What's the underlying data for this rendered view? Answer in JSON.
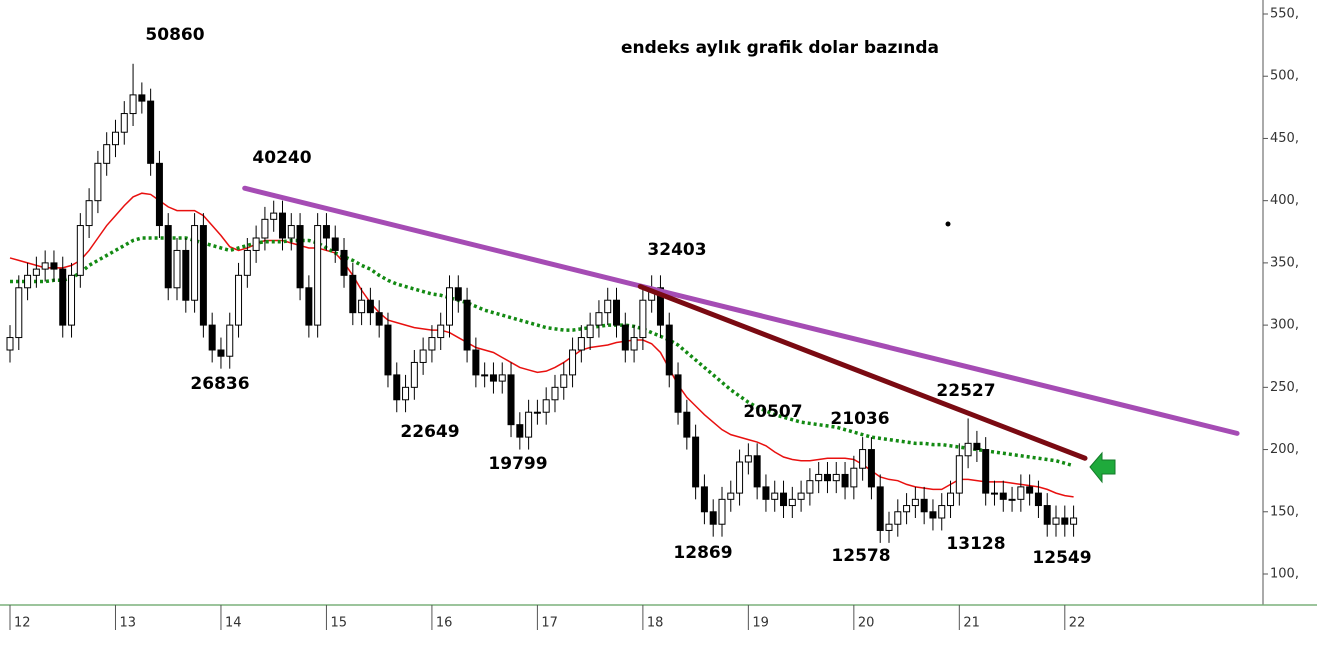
{
  "chart_data": {
    "type": "candlestick",
    "title": "endeks aylık grafik dolar bazında",
    "categories": [
      "12",
      null,
      null,
      null,
      null,
      null,
      null,
      null,
      null,
      null,
      null,
      null,
      "13",
      null,
      null,
      null,
      null,
      null,
      null,
      null,
      null,
      null,
      null,
      null,
      "14",
      null,
      null,
      null,
      null,
      null,
      null,
      null,
      null,
      null,
      null,
      null,
      "15",
      null,
      null,
      null,
      null,
      null,
      null,
      null,
      null,
      null,
      null,
      null,
      "16",
      null,
      null,
      null,
      null,
      null,
      null,
      null,
      null,
      null,
      null,
      null,
      "17",
      null,
      null,
      null,
      null,
      null,
      null,
      null,
      null,
      null,
      null,
      null,
      "18",
      null,
      null,
      null,
      null,
      null,
      null,
      null,
      null,
      null,
      null,
      null,
      "19",
      null,
      null,
      null,
      null,
      null,
      null,
      null,
      null,
      null,
      null,
      null,
      "20",
      null,
      null,
      null,
      null,
      null,
      null,
      null,
      null,
      null,
      null,
      null,
      "21",
      null,
      null,
      null,
      null,
      null,
      null,
      null,
      null,
      null,
      null,
      null,
      "22",
      null
    ],
    "open": [
      280,
      290,
      330,
      340,
      345,
      350,
      345,
      300,
      340,
      380,
      400,
      430,
      445,
      455,
      470,
      485,
      480,
      430,
      380,
      330,
      360,
      320,
      380,
      300,
      280,
      275,
      300,
      340,
      360,
      370,
      385,
      390,
      370,
      380,
      330,
      300,
      380,
      370,
      360,
      340,
      310,
      320,
      310,
      300,
      260,
      240,
      250,
      270,
      280,
      290,
      300,
      330,
      320,
      280,
      260,
      260,
      255,
      260,
      220,
      210,
      230,
      230,
      240,
      250,
      260,
      280,
      290,
      300,
      310,
      320,
      300,
      280,
      290,
      320,
      330,
      300,
      260,
      230,
      210,
      170,
      150,
      140,
      160,
      165,
      190,
      195,
      170,
      160,
      165,
      155,
      160,
      165,
      175,
      180,
      175,
      180,
      170,
      185,
      200,
      170,
      135,
      140,
      150,
      155,
      160,
      150,
      145,
      155,
      165,
      195,
      205,
      200,
      165,
      165,
      160,
      160,
      170,
      165,
      155,
      140,
      145,
      140
    ],
    "high": [
      300,
      340,
      350,
      355,
      360,
      360,
      355,
      350,
      390,
      410,
      440,
      455,
      465,
      480,
      510,
      495,
      490,
      440,
      390,
      370,
      370,
      390,
      390,
      310,
      290,
      310,
      350,
      370,
      380,
      395,
      400,
      400,
      390,
      390,
      340,
      390,
      390,
      380,
      370,
      350,
      330,
      330,
      320,
      310,
      270,
      260,
      280,
      290,
      300,
      310,
      340,
      340,
      330,
      290,
      270,
      270,
      270,
      270,
      230,
      240,
      240,
      250,
      260,
      270,
      290,
      300,
      310,
      320,
      330,
      330,
      310,
      300,
      330,
      340,
      340,
      310,
      270,
      240,
      220,
      180,
      160,
      170,
      175,
      200,
      205,
      205,
      180,
      175,
      175,
      170,
      175,
      185,
      190,
      190,
      190,
      190,
      195,
      210,
      210,
      180,
      150,
      160,
      165,
      170,
      170,
      160,
      165,
      175,
      205,
      225,
      215,
      210,
      175,
      175,
      170,
      180,
      180,
      175,
      165,
      155,
      155,
      155
    ],
    "low": [
      270,
      280,
      320,
      330,
      335,
      335,
      290,
      290,
      330,
      370,
      390,
      420,
      435,
      445,
      460,
      470,
      420,
      370,
      320,
      320,
      310,
      310,
      290,
      270,
      265,
      265,
      290,
      330,
      350,
      360,
      375,
      360,
      360,
      320,
      290,
      290,
      360,
      350,
      330,
      300,
      300,
      300,
      290,
      250,
      230,
      230,
      240,
      260,
      270,
      280,
      290,
      310,
      270,
      250,
      250,
      245,
      245,
      210,
      200,
      200,
      220,
      220,
      230,
      240,
      250,
      270,
      280,
      290,
      300,
      290,
      270,
      270,
      280,
      310,
      290,
      250,
      220,
      200,
      160,
      140,
      130,
      130,
      150,
      155,
      180,
      160,
      150,
      150,
      145,
      145,
      150,
      155,
      165,
      165,
      165,
      160,
      160,
      175,
      160,
      125,
      125,
      130,
      140,
      145,
      140,
      135,
      135,
      145,
      155,
      185,
      190,
      155,
      155,
      150,
      150,
      150,
      155,
      145,
      130,
      130,
      130,
      130
    ],
    "close": [
      290,
      330,
      340,
      345,
      350,
      345,
      300,
      340,
      380,
      400,
      430,
      445,
      455,
      470,
      485,
      480,
      430,
      380,
      330,
      360,
      320,
      380,
      300,
      280,
      275,
      300,
      340,
      360,
      370,
      385,
      390,
      370,
      380,
      330,
      300,
      380,
      370,
      360,
      340,
      310,
      320,
      310,
      300,
      260,
      240,
      250,
      270,
      280,
      290,
      300,
      330,
      320,
      280,
      260,
      260,
      255,
      260,
      220,
      210,
      230,
      230,
      240,
      250,
      260,
      280,
      290,
      300,
      310,
      320,
      300,
      280,
      290,
      320,
      330,
      300,
      260,
      230,
      210,
      170,
      150,
      140,
      160,
      165,
      190,
      195,
      170,
      160,
      165,
      155,
      160,
      165,
      175,
      180,
      175,
      180,
      170,
      185,
      200,
      170,
      135,
      140,
      150,
      155,
      160,
      150,
      145,
      155,
      165,
      195,
      205,
      200,
      165,
      165,
      160,
      160,
      170,
      165,
      155,
      140,
      145,
      140,
      145
    ],
    "series": [
      {
        "color": "#e8100f",
        "style": "solid",
        "values": [
          354,
          352,
          350,
          348,
          346,
          346,
          346,
          348,
          352,
          360,
          370,
          380,
          388,
          396,
          403,
          406,
          405,
          400,
          395,
          392,
          392,
          392,
          388,
          380,
          372,
          363,
          360,
          362,
          365,
          368,
          368,
          368,
          366,
          364,
          362,
          362,
          360,
          358,
          350,
          340,
          328,
          318,
          310,
          304,
          302,
          300,
          298,
          297,
          296,
          296,
          294,
          290,
          286,
          282,
          280,
          278,
          274,
          270,
          266,
          264,
          262,
          263,
          266,
          270,
          275,
          280,
          282,
          283,
          284,
          286,
          287,
          288,
          288,
          285,
          278,
          265,
          252,
          242,
          235,
          228,
          222,
          216,
          212,
          210,
          208,
          206,
          203,
          198,
          194,
          192,
          191,
          191,
          192,
          193,
          193,
          193,
          192,
          188,
          183,
          178,
          176,
          175,
          172,
          170,
          169,
          168,
          168,
          172,
          176,
          176,
          175,
          174,
          174,
          174,
          173,
          172,
          171,
          170,
          168,
          165,
          163,
          162
        ]
      },
      {
        "color": "#138a13",
        "style": "dotted",
        "values": [
          335,
          335,
          335,
          335,
          335,
          336,
          336,
          338,
          342,
          348,
          352,
          356,
          360,
          364,
          368,
          370,
          370,
          370,
          370,
          370,
          370,
          368,
          366,
          364,
          362,
          360,
          362,
          364,
          366,
          367,
          367,
          367,
          368,
          368,
          368,
          366,
          362,
          358,
          355,
          352,
          348,
          345,
          340,
          336,
          333,
          331,
          329,
          327,
          325,
          324,
          322,
          320,
          318,
          315,
          312,
          310,
          308,
          306,
          304,
          302,
          300,
          298,
          297,
          296,
          296,
          297,
          298,
          299,
          300,
          300,
          300,
          299,
          297,
          294,
          291,
          288,
          284,
          278,
          272,
          266,
          260,
          254,
          248,
          243,
          238,
          234,
          231,
          228,
          226,
          224,
          222,
          221,
          220,
          219,
          218,
          216,
          214,
          212,
          210,
          209,
          208,
          207,
          206,
          205,
          205,
          204,
          204,
          203,
          202,
          201,
          200,
          199,
          198,
          197,
          196,
          195,
          194,
          193,
          192,
          191,
          189,
          187
        ]
      }
    ],
    "trend_lines": [
      {
        "color": "#a54cb4",
        "x": [
          26.7,
          139.6
        ],
        "values": [
          410,
          213
        ]
      },
      {
        "color": "#7a0a12",
        "x": [
          71.7,
          122.3
        ],
        "values": [
          331,
          193
        ]
      }
    ],
    "annotations": [
      "50860",
      "40240",
      "26836",
      "22649",
      "19799",
      "32403",
      "20507",
      "21036",
      "22527",
      "12869",
      "12578",
      "13128",
      "12549"
    ],
    "ylim": [
      100,
      550
    ],
    "yticks": [
      {
        "value": 100,
        "label": "100,"
      },
      {
        "value": 150,
        "label": "150,"
      },
      {
        "value": 200,
        "label": "200,"
      },
      {
        "value": 250,
        "label": "250,"
      },
      {
        "value": 300,
        "label": "300,"
      },
      {
        "value": 350,
        "label": "350,"
      },
      {
        "value": 400,
        "label": "400,"
      },
      {
        "value": 450,
        "label": "450,"
      },
      {
        "value": 500,
        "label": "500,"
      },
      {
        "value": 550,
        "label": "550,"
      }
    ]
  }
}
